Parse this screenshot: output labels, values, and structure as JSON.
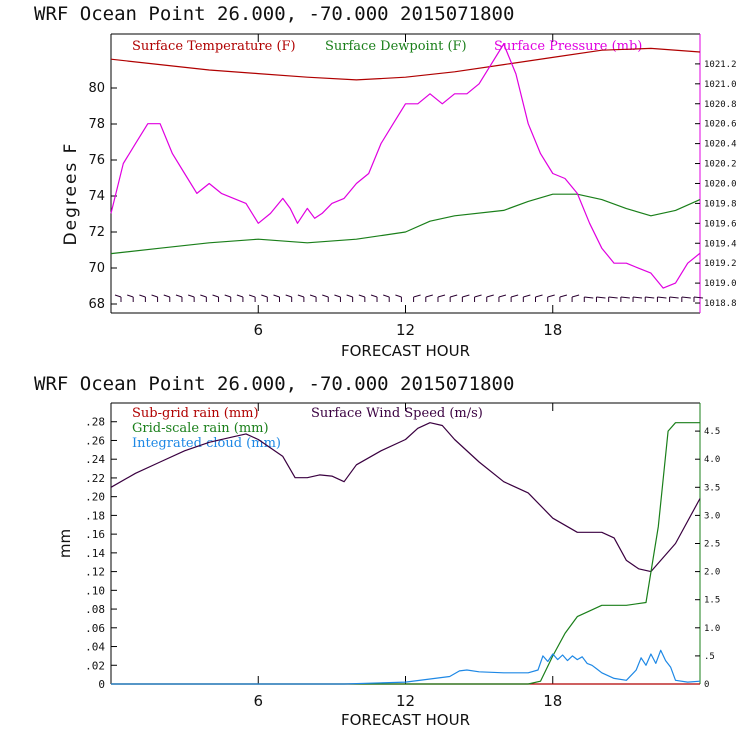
{
  "chart_data": [
    {
      "type": "line",
      "title": "WRF   Ocean Point   26.000, -70.000  2015071800",
      "xlabel": "FORECAST HOUR",
      "ylabel": "Degrees F",
      "xlim": [
        0,
        24
      ],
      "ylim": [
        67.5,
        83
      ],
      "ylim_right": [
        1018.7,
        1021.5
      ],
      "x_ticks": [
        6,
        12,
        18
      ],
      "y_ticks": [
        68,
        70,
        72,
        74,
        76,
        78,
        80
      ],
      "y_ticks_right": [
        1018.8,
        1019.0,
        1019.2,
        1019.4,
        1019.6,
        1019.8,
        1020.0,
        1020.2,
        1020.4,
        1020.6,
        1020.8,
        1021.0,
        1021.2
      ],
      "legend": [
        {
          "label": "Surface Temperature (F)",
          "color": "#b00000"
        },
        {
          "label": "Surface Dewpoint (F)",
          "color": "#1a7f1a"
        },
        {
          "label": "Surface Pressure (mb)",
          "color": "#e000e0"
        }
      ],
      "series": [
        {
          "name": "Surface Temperature (F)",
          "axis": "left",
          "color": "#b00000",
          "x": [
            0,
            2,
            4,
            6,
            8,
            10,
            12,
            14,
            16,
            18,
            20,
            22,
            24
          ],
          "values": [
            81.6,
            81.3,
            81.0,
            80.8,
            80.6,
            80.45,
            80.6,
            80.9,
            81.3,
            81.7,
            82.1,
            82.2,
            82.0
          ]
        },
        {
          "name": "Surface Dewpoint (F)",
          "axis": "left",
          "color": "#1a7f1a",
          "x": [
            0,
            2,
            4,
            6,
            8,
            10,
            12,
            13,
            14,
            16,
            17,
            18,
            19,
            20,
            21,
            22,
            23,
            24
          ],
          "values": [
            70.8,
            71.1,
            71.4,
            71.6,
            71.4,
            71.6,
            72.0,
            72.6,
            72.9,
            73.2,
            73.7,
            74.1,
            74.1,
            73.8,
            73.3,
            72.9,
            73.2,
            73.8
          ]
        },
        {
          "name": "Surface Pressure (mb)",
          "axis": "right",
          "color": "#e000e0",
          "x": [
            0,
            0.5,
            1,
            1.5,
            2,
            2.5,
            3,
            3.5,
            4,
            4.5,
            5,
            5.5,
            6,
            6.5,
            7,
            7.3,
            7.6,
            8,
            8.3,
            8.6,
            9,
            9.5,
            10,
            10.5,
            11,
            11.5,
            12,
            12.5,
            13,
            13.5,
            14,
            14.5,
            15,
            15.5,
            16,
            16.5,
            17,
            17.5,
            18,
            18.5,
            19,
            19.5,
            20,
            20.5,
            21,
            21.5,
            22,
            22.5,
            23,
            23.5,
            24
          ],
          "values": [
            1019.7,
            1020.2,
            1020.4,
            1020.6,
            1020.6,
            1020.3,
            1020.1,
            1019.9,
            1020.0,
            1019.9,
            1019.85,
            1019.8,
            1019.6,
            1019.7,
            1019.85,
            1019.75,
            1019.6,
            1019.75,
            1019.65,
            1019.7,
            1019.8,
            1019.85,
            1020.0,
            1020.1,
            1020.4,
            1020.6,
            1020.8,
            1020.8,
            1020.9,
            1020.8,
            1020.9,
            1020.9,
            1021.0,
            1021.2,
            1021.4,
            1021.1,
            1020.6,
            1020.3,
            1020.1,
            1020.05,
            1019.9,
            1019.6,
            1019.35,
            1019.2,
            1019.2,
            1019.15,
            1019.1,
            1018.95,
            1019.0,
            1019.2,
            1019.3
          ]
        }
      ],
      "wind_barbs": "row of wind barbs along the bottom of the panel"
    },
    {
      "type": "line",
      "title": "WRF   Ocean Point   26.000, -70.000  2015071800",
      "xlabel": "FORECAST HOUR",
      "ylabel": "mm",
      "xlim": [
        0,
        24
      ],
      "ylim": [
        0,
        0.3
      ],
      "ylim_right": [
        0,
        5.0
      ],
      "x_ticks": [
        6,
        12,
        18
      ],
      "y_ticks": [
        "0",
        ".02",
        ".04",
        ".06",
        ".08",
        ".10",
        ".12",
        ".14",
        ".16",
        ".18",
        ".20",
        ".22",
        ".24",
        ".26",
        ".28"
      ],
      "y_ticks_right": [
        "0",
        ".5",
        "1.0",
        "1.5",
        "2.0",
        "2.5",
        "3.0",
        "3.5",
        "4.0",
        "4.5"
      ],
      "legend": [
        {
          "label": "Sub-grid rain (mm)",
          "color": "#b00000"
        },
        {
          "label": "Surface Wind Speed (m/s)",
          "color": "#3a0040"
        },
        {
          "label": "Grid-scale rain (mm)",
          "color": "#1a7f1a"
        },
        {
          "label": "Integrated cloud (mm)",
          "color": "#1e88e5"
        }
      ],
      "series": [
        {
          "name": "Sub-grid rain (mm)",
          "axis": "left",
          "color": "#b00000",
          "x": [
            0,
            24
          ],
          "values": [
            0,
            0
          ]
        },
        {
          "name": "Surface Wind Speed (m/s)",
          "axis": "right",
          "color": "#3a0040",
          "x": [
            0,
            1,
            2,
            3,
            4,
            5,
            5.5,
            6,
            7,
            7.5,
            8,
            8.5,
            9,
            9.5,
            10,
            11,
            12,
            12.5,
            13,
            13.5,
            14,
            15,
            16,
            17,
            18,
            19,
            20,
            20.5,
            21,
            21.5,
            22,
            23,
            24
          ],
          "values": [
            3.5,
            3.75,
            3.95,
            4.15,
            4.3,
            4.4,
            4.45,
            4.35,
            4.05,
            3.67,
            3.67,
            3.72,
            3.7,
            3.6,
            3.9,
            4.15,
            4.35,
            4.55,
            4.65,
            4.6,
            4.35,
            3.95,
            3.6,
            3.4,
            2.95,
            2.7,
            2.7,
            2.6,
            2.2,
            2.05,
            2.0,
            2.5,
            3.3
          ]
        },
        {
          "name": "Grid-scale rain (mm)",
          "axis": "right",
          "color": "#1a7f1a",
          "x": [
            0,
            17,
            17.5,
            18,
            18.5,
            19,
            19.5,
            20,
            21,
            21.8,
            22.3,
            22.7,
            23,
            24
          ],
          "values": [
            0,
            0,
            0.05,
            0.5,
            0.9,
            1.2,
            1.3,
            1.4,
            1.4,
            1.45,
            2.8,
            4.5,
            4.65,
            4.65
          ]
        },
        {
          "name": "Integrated cloud (mm)",
          "axis": "left",
          "color": "#1e88e5",
          "x": [
            0,
            9.5,
            12,
            13.8,
            14.2,
            14.5,
            15,
            16,
            17,
            17.4,
            17.6,
            17.8,
            18,
            18.2,
            18.4,
            18.6,
            18.8,
            19,
            19.2,
            19.4,
            19.6,
            19.8,
            20,
            20.5,
            21,
            21.4,
            21.6,
            21.8,
            22,
            22.2,
            22.4,
            22.6,
            22.8,
            23,
            23.5,
            24
          ],
          "values": [
            0,
            0,
            0.002,
            0.008,
            0.014,
            0.015,
            0.013,
            0.012,
            0.012,
            0.015,
            0.03,
            0.024,
            0.032,
            0.026,
            0.031,
            0.025,
            0.03,
            0.026,
            0.029,
            0.022,
            0.02,
            0.016,
            0.012,
            0.006,
            0.004,
            0.015,
            0.028,
            0.02,
            0.032,
            0.022,
            0.036,
            0.025,
            0.018,
            0.004,
            0.002,
            0.003
          ]
        }
      ]
    }
  ]
}
